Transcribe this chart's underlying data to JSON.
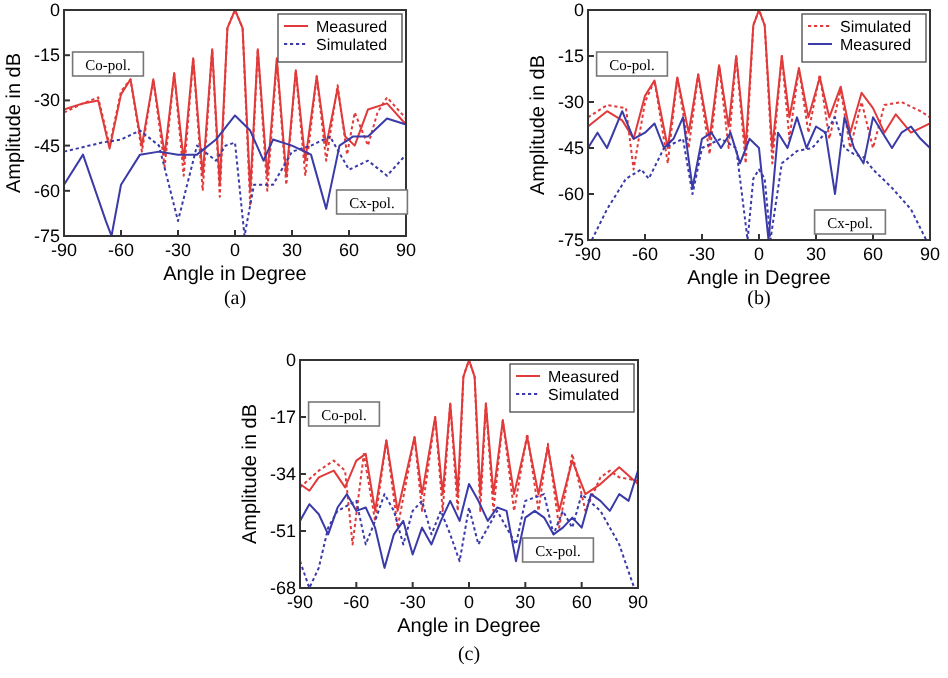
{
  "chart_data": [
    {
      "type": "line",
      "xlabel": "Angle in Degree",
      "ylabel": "Amplitude in dB",
      "xlim": [
        -90,
        90
      ],
      "xticks": [
        -90,
        -60,
        -30,
        0,
        30,
        60,
        90
      ],
      "ylim": [
        -75,
        0
      ],
      "yticks": [
        -75,
        -60,
        -45,
        -30,
        -15,
        0
      ],
      "legend": "top right",
      "grid": false,
      "annotations": [
        "Co-pol.",
        "Cx-pol.",
        "(a)"
      ],
      "series": [
        {
          "color": "#e03a3a",
          "line_style": "dotted",
          "x": [
            -90,
            -80,
            -72,
            -66,
            -60,
            -55,
            -49,
            -43,
            -37,
            -32,
            -27,
            -22,
            -17,
            -12,
            -8,
            -4,
            0,
            4,
            8,
            12,
            17,
            22,
            27,
            32,
            37,
            43,
            48,
            54,
            59,
            63,
            70,
            75,
            80,
            90
          ],
          "values": [
            -34,
            -31,
            -29,
            -45,
            -27,
            -23,
            -47,
            -23,
            -52,
            -21,
            -55,
            -16,
            -60,
            -13,
            -62,
            -6,
            0,
            -6,
            -65,
            -13,
            -60,
            -17,
            -58,
            -20,
            -55,
            -22,
            -50,
            -25,
            -48,
            -34,
            -45,
            -34,
            -29,
            -36
          ]
        },
        {
          "name": "Measured",
          "color": "#e03a3a",
          "line_style": "solid",
          "x": [
            -90,
            -80,
            -72,
            -66,
            -60,
            -55,
            -49,
            -43,
            -37,
            -32,
            -27,
            -22,
            -17,
            -12,
            -8,
            -4,
            0,
            4,
            8,
            12,
            17,
            22,
            27,
            32,
            37,
            43,
            48,
            54,
            58,
            63,
            70,
            80,
            90
          ],
          "values": [
            -33,
            -31,
            -30,
            -46,
            -28,
            -23,
            -45,
            -23,
            -48,
            -21,
            -50,
            -16,
            -55,
            -13,
            -58,
            -6,
            0,
            -6,
            -60,
            -13,
            -55,
            -16,
            -55,
            -20,
            -50,
            -22,
            -45,
            -26,
            -42,
            -45,
            -33,
            -31,
            -38
          ]
        },
        {
          "name": "Simulated",
          "color": "#3a3aa8",
          "line_style": "dotted",
          "x": [
            -90,
            -70,
            -60,
            -50,
            -40,
            -30,
            -20,
            -10,
            -5,
            0,
            5,
            10,
            20,
            30,
            40,
            50,
            60,
            70,
            80,
            90
          ],
          "values": [
            -47,
            -44,
            -43,
            -40,
            -45,
            -70,
            -45,
            -50,
            -45,
            -44,
            -75,
            -58,
            -58,
            -47,
            -45,
            -42,
            -53,
            -50,
            -55,
            -48
          ]
        },
        {
          "color": "#3a3aa8",
          "line_style": "solid",
          "x": [
            -90,
            -80,
            -68,
            -65,
            -60,
            -50,
            -40,
            -30,
            -20,
            -10,
            0,
            8,
            15,
            20,
            30,
            40,
            48,
            55,
            62,
            70,
            80,
            90
          ],
          "values": [
            -58,
            -48,
            -70,
            -75,
            -58,
            -48,
            -47,
            -48,
            -48,
            -43,
            -35,
            -40,
            -50,
            -43,
            -45,
            -48,
            -66,
            -45,
            -42,
            -42,
            -36,
            -38
          ]
        }
      ]
    },
    {
      "type": "line",
      "xlabel": "Angle in Degree",
      "ylabel": "Amplitude in dB",
      "xlim": [
        -90,
        90
      ],
      "xticks": [
        -90,
        -60,
        -30,
        0,
        30,
        60,
        90
      ],
      "ylim": [
        -75,
        0
      ],
      "yticks": [
        -75,
        -60,
        -45,
        -30,
        -15,
        0
      ],
      "legend": "top right",
      "grid": false,
      "annotations": [
        "Co-pol.",
        "Cx-pol.",
        "(b)"
      ],
      "series": [
        {
          "name": "Simulated",
          "color": "#e03a3a",
          "line_style": "dotted",
          "x": [
            -90,
            -80,
            -70,
            -66,
            -60,
            -55,
            -48,
            -43,
            -37,
            -32,
            -26,
            -21,
            -16,
            -12,
            -7,
            -3,
            0,
            3,
            7,
            12,
            16,
            21,
            26,
            32,
            37,
            43,
            48,
            54,
            60,
            66,
            75,
            85,
            90
          ],
          "values": [
            -35,
            -31,
            -32,
            -52,
            -30,
            -23,
            -50,
            -22,
            -45,
            -21,
            -47,
            -18,
            -45,
            -15,
            -50,
            -5,
            0,
            -5,
            -50,
            -15,
            -42,
            -19,
            -40,
            -21,
            -42,
            -26,
            -45,
            -30,
            -45,
            -31,
            -30,
            -33,
            -35
          ]
        },
        {
          "color": "#e03a3a",
          "line_style": "solid",
          "x": [
            -90,
            -80,
            -72,
            -66,
            -60,
            -55,
            -48,
            -43,
            -37,
            -32,
            -26,
            -21,
            -16,
            -12,
            -7,
            -3,
            0,
            3,
            7,
            12,
            16,
            21,
            26,
            32,
            37,
            43,
            48,
            54,
            60,
            66,
            72,
            80,
            90
          ],
          "values": [
            -38,
            -33,
            -36,
            -42,
            -28,
            -23,
            -45,
            -22,
            -40,
            -21,
            -42,
            -18,
            -38,
            -15,
            -45,
            -5,
            0,
            -5,
            -45,
            -15,
            -35,
            -19,
            -35,
            -22,
            -35,
            -25,
            -40,
            -27,
            -32,
            -40,
            -34,
            -40,
            -37
          ]
        },
        {
          "color": "#3a3aa8",
          "line_style": "dotted",
          "x": [
            -88,
            -80,
            -70,
            -62,
            -58,
            -50,
            -40,
            -35,
            -30,
            -20,
            -12,
            -6,
            -3,
            0,
            3,
            6,
            12,
            20,
            28,
            35,
            40,
            45,
            50,
            55,
            60,
            70,
            80,
            88
          ],
          "values": [
            -75,
            -65,
            -55,
            -52,
            -55,
            -45,
            -42,
            -60,
            -45,
            -42,
            -45,
            -75,
            -55,
            -52,
            -55,
            -75,
            -50,
            -46,
            -45,
            -40,
            -35,
            -45,
            -47,
            -48,
            -52,
            -58,
            -65,
            -75
          ]
        },
        {
          "name": "Measured",
          "color": "#3a3aa8",
          "line_style": "solid",
          "x": [
            -90,
            -85,
            -80,
            -72,
            -66,
            -60,
            -55,
            -50,
            -45,
            -40,
            -35,
            -30,
            -25,
            -20,
            -15,
            -10,
            -5,
            0,
            5,
            10,
            15,
            20,
            25,
            30,
            35,
            40,
            45,
            50,
            55,
            60,
            65,
            70,
            75,
            80,
            85,
            90
          ],
          "values": [
            -45,
            -40,
            -45,
            -33,
            -42,
            -40,
            -37,
            -45,
            -42,
            -35,
            -58,
            -42,
            -40,
            -45,
            -40,
            -50,
            -42,
            -45,
            -75,
            -40,
            -45,
            -35,
            -45,
            -38,
            -40,
            -60,
            -35,
            -45,
            -50,
            -35,
            -40,
            -45,
            -40,
            -38,
            -42,
            -45
          ]
        }
      ]
    },
    {
      "type": "line",
      "xlabel": "Angle in Degree",
      "ylabel": "Amplitude in dB",
      "xlim": [
        -90,
        90
      ],
      "xticks": [
        -90,
        -60,
        -30,
        0,
        30,
        60,
        90
      ],
      "ylim": [
        -68,
        0
      ],
      "yticks": [
        -68,
        -51,
        -34,
        -17,
        0
      ],
      "legend": "top right",
      "grid": false,
      "annotations": [
        "Co-pol.",
        "Cx-pol.",
        "(c)"
      ],
      "series": [
        {
          "color": "#e03a3a",
          "line_style": "dotted",
          "x": [
            -90,
            -80,
            -72,
            -66,
            -62,
            -56,
            -50,
            -44,
            -38,
            -29,
            -25,
            -18,
            -14,
            -10,
            -6,
            -3,
            0,
            3,
            6,
            9,
            13,
            18,
            24,
            31,
            37,
            42,
            48,
            55,
            62,
            70,
            75,
            80,
            90
          ],
          "values": [
            -38,
            -33,
            -30,
            -33,
            -55,
            -28,
            -48,
            -24,
            -50,
            -23,
            -45,
            -17,
            -45,
            -13,
            -45,
            -5,
            0,
            -5,
            -45,
            -13,
            -45,
            -18,
            -45,
            -22,
            -45,
            -25,
            -50,
            -28,
            -45,
            -35,
            -33,
            -35,
            -36
          ]
        },
        {
          "name": "Measured",
          "color": "#e03a3a",
          "line_style": "solid",
          "x": [
            -90,
            -85,
            -80,
            -72,
            -66,
            -60,
            -55,
            -50,
            -44,
            -38,
            -29,
            -25,
            -18,
            -14,
            -10,
            -6,
            -3,
            0,
            3,
            6,
            9,
            13,
            18,
            24,
            31,
            37,
            42,
            48,
            55,
            62,
            70,
            80,
            90
          ],
          "values": [
            -37,
            -39,
            -35,
            -33,
            -38,
            -30,
            -28,
            -45,
            -24,
            -45,
            -23,
            -40,
            -17,
            -40,
            -13,
            -40,
            -5,
            0,
            -5,
            -40,
            -13,
            -40,
            -18,
            -40,
            -23,
            -40,
            -26,
            -45,
            -30,
            -40,
            -37,
            -32,
            -37
          ]
        },
        {
          "name": "Simulated",
          "color": "#3a3aa8",
          "line_style": "dotted",
          "x": [
            -90,
            -85,
            -80,
            -75,
            -70,
            -60,
            -55,
            -50,
            -45,
            -40,
            -35,
            -30,
            -25,
            -20,
            -15,
            -10,
            -5,
            0,
            5,
            10,
            15,
            20,
            25,
            30,
            40,
            45,
            50,
            55,
            60,
            70,
            80,
            88
          ],
          "values": [
            -60,
            -68,
            -62,
            -50,
            -45,
            -42,
            -55,
            -48,
            -40,
            -45,
            -55,
            -45,
            -42,
            -52,
            -45,
            -52,
            -60,
            -44,
            -55,
            -50,
            -45,
            -50,
            -55,
            -42,
            -40,
            -52,
            -45,
            -50,
            -40,
            -45,
            -55,
            -68
          ]
        },
        {
          "color": "#3a3aa8",
          "line_style": "solid",
          "x": [
            -90,
            -85,
            -80,
            -75,
            -70,
            -65,
            -60,
            -55,
            -50,
            -45,
            -40,
            -35,
            -30,
            -25,
            -20,
            -15,
            -10,
            -5,
            0,
            5,
            10,
            15,
            20,
            25,
            30,
            35,
            40,
            45,
            50,
            55,
            60,
            65,
            70,
            75,
            80,
            85,
            90
          ],
          "values": [
            -48,
            -43,
            -46,
            -52,
            -44,
            -40,
            -45,
            -44,
            -50,
            -62,
            -52,
            -48,
            -58,
            -50,
            -55,
            -48,
            -42,
            -48,
            -37,
            -42,
            -48,
            -44,
            -45,
            -60,
            -47,
            -45,
            -47,
            -52,
            -50,
            -47,
            -50,
            -40,
            -42,
            -45,
            -40,
            -42,
            -33
          ]
        }
      ]
    }
  ]
}
